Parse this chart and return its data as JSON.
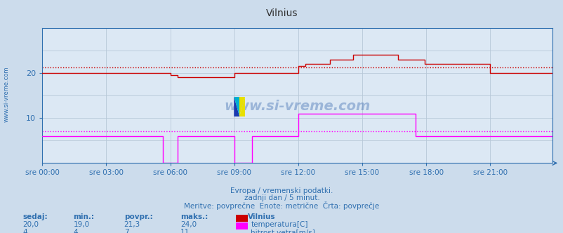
{
  "title": "Vilnius",
  "bg_color": "#ccdcec",
  "plot_bg_color": "#dce8f4",
  "grid_color": "#b8c8d8",
  "xlabel_color": "#3070b0",
  "tick_color": "#3070b0",
  "title_color": "#303030",
  "ylim": [
    0,
    30
  ],
  "yticks": [
    10,
    20
  ],
  "n_points": 288,
  "temp_color": "#cc0000",
  "wind_color": "#ff00ff",
  "footer_line1": "Evropa / vremenski podatki.",
  "footer_line2": "zadnji dan / 5 minut.",
  "footer_line3": "Meritve: povprečne  Enote: metrične  Črta: povprečje",
  "legend_title": "Vilnius",
  "legend_items": [
    {
      "label": "temperatura[C]",
      "color": "#cc0000"
    },
    {
      "label": "hitrost vetra[m/s]",
      "color": "#ff00ff"
    }
  ],
  "stats_headers": [
    "sedaj:",
    "min.:",
    "povpr.:",
    "maks.:"
  ],
  "stats_temp": [
    "20,0",
    "19,0",
    "21,3",
    "24,0"
  ],
  "stats_wind": [
    "4",
    "4",
    "7",
    "11"
  ],
  "side_label": "www.si-vreme.com",
  "watermark_text": "www.si-vreme.com",
  "xtick_labels": [
    "sre 00:00",
    "sre 03:00",
    "sre 06:00",
    "sre 09:00",
    "sre 12:00",
    "sre 15:00",
    "sre 18:00",
    "sre 21:00"
  ],
  "xtick_positions": [
    0,
    36,
    72,
    108,
    144,
    180,
    216,
    252
  ],
  "avg_temp": 21.3,
  "avg_wind": 7.0
}
